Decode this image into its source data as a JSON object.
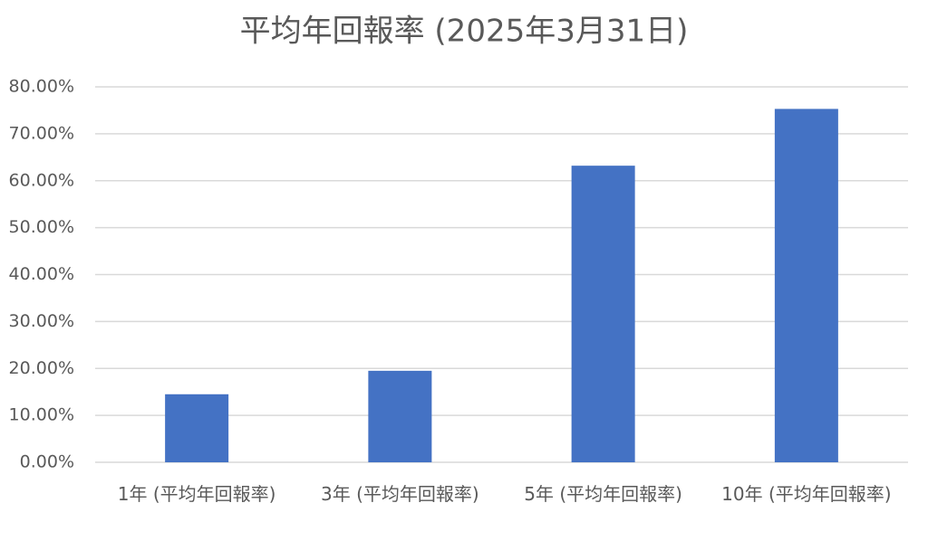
{
  "chart_data": {
    "type": "bar",
    "title": "平均年回報率 (2025年3月31日)",
    "categories": [
      "1年 (平均年回報率)",
      "3年 (平均年回報率)",
      "5年 (平均年回報率)",
      "10年 (平均年回報率)"
    ],
    "values": [
      14.5,
      19.5,
      63.2,
      75.3
    ],
    "color": "#4472c4",
    "ylim": [
      0,
      80
    ],
    "yticks": [
      {
        "value": 0,
        "label": "0.00%"
      },
      {
        "value": 10,
        "label": "10.00%"
      },
      {
        "value": 20,
        "label": "20.00%"
      },
      {
        "value": 30,
        "label": "30.00%"
      },
      {
        "value": 40,
        "label": "40.00%"
      },
      {
        "value": 50,
        "label": "50.00%"
      },
      {
        "value": 60,
        "label": "60.00%"
      },
      {
        "value": 70,
        "label": "70.00%"
      },
      {
        "value": 80,
        "label": "80.00%"
      }
    ],
    "grid": true
  }
}
